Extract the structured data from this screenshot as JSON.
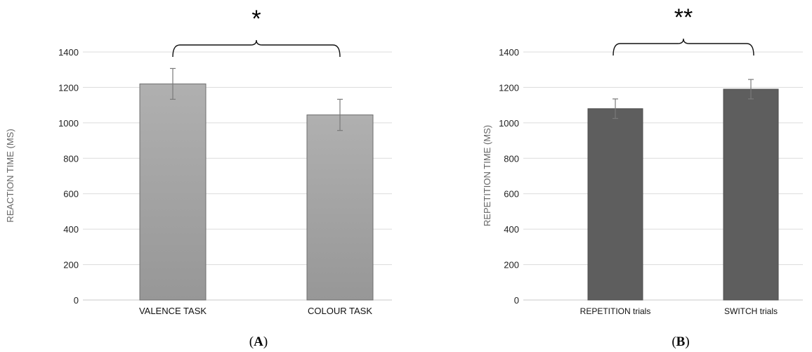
{
  "chart_data": [
    {
      "type": "bar",
      "panel_label": "A",
      "ylabel": "REACTION TIME (MS)",
      "categories": [
        "VALENCE TASK",
        "COLOUR TASK"
      ],
      "values": [
        1220,
        1045
      ],
      "errors": [
        87,
        88
      ],
      "ylim": [
        0,
        1400
      ],
      "yticks": [
        0,
        200,
        400,
        600,
        800,
        1000,
        1200,
        1400
      ],
      "grid": true,
      "bar_color": "#a3a3a3",
      "significance": "*"
    },
    {
      "type": "bar",
      "panel_label": "B",
      "ylabel": "REPETITION TIME (MS)",
      "categories": [
        "REPETITION trials",
        "SWITCH trials"
      ],
      "values": [
        1080,
        1190
      ],
      "errors": [
        55,
        55
      ],
      "ylim": [
        0,
        1400
      ],
      "yticks": [
        0,
        200,
        400,
        600,
        800,
        1000,
        1200,
        1400
      ],
      "grid": true,
      "bar_color": "#5e5e5e",
      "significance": "**"
    }
  ]
}
